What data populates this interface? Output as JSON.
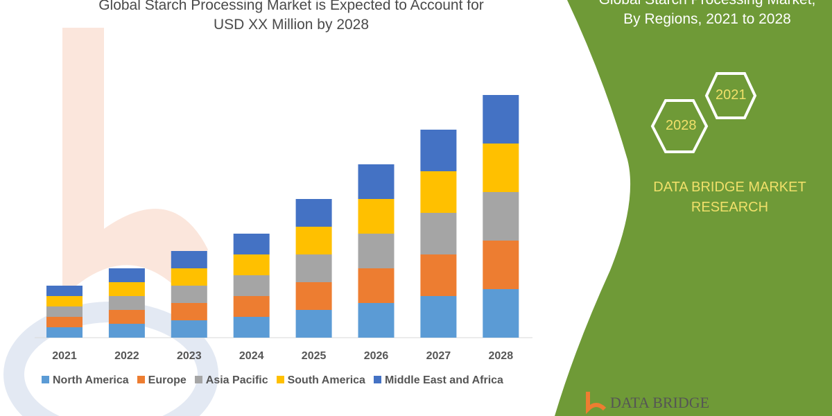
{
  "title_line1": "Global Starch Processing Market is Expected to Account for",
  "title_line2": "USD XX Million by 2028",
  "side_title_line1": "Global Starch Processing Market,",
  "side_title_line2": "By Regions, 2021 to 2028",
  "hex_labels": [
    "2021",
    "2028"
  ],
  "brand_line1": "DATA BRIDGE MARKET",
  "brand_line2": "RESEARCH",
  "logo_text": "DATA BRIDGE",
  "colors": {
    "panel": "#6f9a37",
    "accent_text": "#f0e06a"
  },
  "chart_data": {
    "type": "bar",
    "stacked": true,
    "categories": [
      "2021",
      "2022",
      "2023",
      "2024",
      "2025",
      "2026",
      "2027",
      "2028"
    ],
    "series": [
      {
        "name": "North America",
        "color": "#5b9bd5",
        "values": [
          1.5,
          2,
          2.5,
          3,
          4,
          5,
          6,
          7
        ]
      },
      {
        "name": "Europe",
        "color": "#ed7d31",
        "values": [
          1.5,
          2,
          2.5,
          3,
          4,
          5,
          6,
          7
        ]
      },
      {
        "name": "Asia Pacific",
        "color": "#a5a5a5",
        "values": [
          1.5,
          2,
          2.5,
          3,
          4,
          5,
          6,
          7
        ]
      },
      {
        "name": "South America",
        "color": "#ffc000",
        "values": [
          1.5,
          2,
          2.5,
          3,
          4,
          5,
          6,
          7
        ]
      },
      {
        "name": "Middle East and Africa",
        "color": "#4472c4",
        "values": [
          1.5,
          2,
          2.5,
          3,
          4,
          5,
          6,
          7
        ]
      }
    ],
    "legend": "bottom",
    "grid": false,
    "y_axis_shown": false
  }
}
